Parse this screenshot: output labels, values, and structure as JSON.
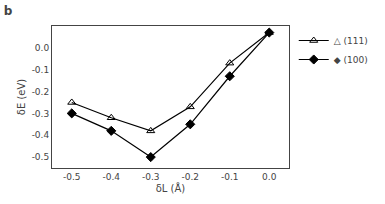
{
  "chart_data": {
    "type": "line",
    "title": "b",
    "x_label": "δL (Å)",
    "y_label": "δE (eV)",
    "x": [
      -0.5,
      -0.4,
      -0.3,
      -0.2,
      -0.1,
      0.0
    ],
    "series": [
      {
        "name": "△ (111)",
        "color": "black",
        "marker": "triangle-up-open",
        "line_style": "solid",
        "values": [
          -0.25,
          -0.32,
          -0.38,
          -0.27,
          -0.07,
          0.07
        ]
      },
      {
        "name": "◆ (100)",
        "color": "black",
        "marker": "diamond",
        "line_style": "solid",
        "values": [
          -0.3,
          -0.38,
          -0.5,
          -0.35,
          -0.13,
          0.07
        ]
      }
    ],
    "xlim": [
      -0.55,
      0.05
    ],
    "ylim": [
      -0.55,
      0.1
    ],
    "xticks": [
      -0.5,
      -0.4,
      -0.3,
      -0.2,
      -0.1,
      {
        "value": 0.0,
        "label": "0.0"
      }
    ],
    "yticks": [
      {
        "value": 0.0,
        "label": "0.0"
      },
      -0.1,
      -0.2,
      -0.3,
      -0.4,
      -0.5
    ],
    "grid": false,
    "legend": "upper right"
  }
}
